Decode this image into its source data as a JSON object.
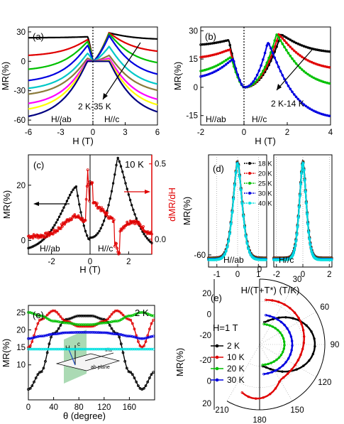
{
  "chart_data": [
    {
      "id": "a",
      "type": "line",
      "panel_label": "(a)",
      "xlabel": "H (T)",
      "ylabel": "MR(%)",
      "xlim": [
        -6,
        6
      ],
      "ylim": [
        -65,
        35
      ],
      "xticks": [
        "-6",
        "-3",
        "0",
        "3",
        "6"
      ],
      "yticks": [
        "-60",
        "-30",
        "0",
        "30"
      ],
      "annotations": [
        "2 K-35 K",
        "H//ab",
        "H//c"
      ],
      "series": [
        {
          "color": "#000000",
          "peak_left": 25,
          "peak_right": 29,
          "wing_left": 24,
          "wing_right": 22
        },
        {
          "color": "#e00000",
          "peak_left": 22,
          "peak_right": 29,
          "wing_left": 5,
          "wing_right": 8
        },
        {
          "color": "#00c000",
          "peak_left": 20,
          "peak_right": 28,
          "wing_left": -10,
          "wing_right": -5
        },
        {
          "color": "#0000e0",
          "peak_left": 16,
          "peak_right": 26,
          "wing_left": -22,
          "wing_right": -18
        },
        {
          "color": "#00c8c8",
          "peak_left": 8,
          "peak_right": 15,
          "wing_left": -30,
          "wing_right": -28
        },
        {
          "color": "#8a7a3a",
          "peak_left": 3,
          "peak_right": 6,
          "wing_left": -36,
          "wing_right": -34
        },
        {
          "color": "#ff00ff",
          "peak_left": 1,
          "peak_right": 3,
          "wing_left": -46,
          "wing_right": -44
        },
        {
          "color": "#ffff00",
          "peak_left": 0,
          "peak_right": 1,
          "wing_left": -52,
          "wing_right": -50
        },
        {
          "color": "#000080",
          "peak_left": 0,
          "peak_right": 0,
          "wing_left": -60,
          "wing_right": -58
        }
      ]
    },
    {
      "id": "b",
      "type": "line",
      "panel_label": "(b)",
      "xlabel": "H (T)",
      "ylabel": "MR(%)",
      "xlim": [
        -2,
        4
      ],
      "ylim": [
        -20,
        32
      ],
      "xticks": [
        "-2",
        "0",
        "2",
        "4"
      ],
      "yticks": [
        "-15",
        "0",
        "15",
        "30"
      ],
      "annotations": [
        "2 K-14 K",
        "H//ab",
        "H//c"
      ],
      "series": [
        {
          "color": "#000000",
          "peak_left_x": -0.7,
          "peak_left": 25,
          "peak_right_x": 1.7,
          "peak_right": 28,
          "end_left": 22,
          "end_right": 18
        },
        {
          "color": "#e00000",
          "peak_left_x": -0.65,
          "peak_left": 20,
          "peak_right_x": 1.6,
          "peak_right": 28,
          "end_left": 15,
          "end_right": 9
        },
        {
          "color": "#00c000",
          "peak_left_x": -0.6,
          "peak_left": 16,
          "peak_right_x": 1.5,
          "peak_right": 28,
          "end_left": 7,
          "end_right": 0
        },
        {
          "color": "#0000e0",
          "peak_left_x": -0.5,
          "peak_left": 15,
          "peak_right_x": 1.1,
          "peak_right": 24,
          "end_left": 4,
          "end_right": -17
        }
      ]
    },
    {
      "id": "c",
      "type": "line",
      "panel_label": "(c)",
      "xlabel": "H (T)",
      "ylabel": "MR(%)",
      "ylabel_right": "dMR/dH",
      "xlim": [
        -3.2,
        3.2
      ],
      "ylim": [
        -5,
        31
      ],
      "y2lim": [
        -0.1,
        0.56
      ],
      "xticks": [
        "-2",
        "0",
        "2"
      ],
      "yticks": [
        "0",
        "20"
      ],
      "y2ticks": [
        "0.0",
        "0.5"
      ],
      "annotations": [
        "10 K",
        "H//ab",
        "H//c"
      ]
    },
    {
      "id": "d",
      "type": "line",
      "panel_label": "(d)",
      "xlabel": "H/(T+T*) (T/K)",
      "ylabel": "MR(%)",
      "ylim": [
        -68,
        6
      ],
      "yticks": [
        "-60"
      ],
      "xticks_left": [
        "-1",
        "0",
        "1"
      ],
      "xticks_right": [
        "-2",
        "0",
        "2"
      ],
      "annotations": [
        "H//ab",
        "H//c"
      ],
      "legend": [
        {
          "label": "18 K",
          "color": "#000000"
        },
        {
          "label": "20 K",
          "color": "#e00000"
        },
        {
          "label": "25 K",
          "color": "#00c000"
        },
        {
          "label": "30 K",
          "color": "#0000e0"
        },
        {
          "label": "40 K",
          "color": "#00e0e0"
        }
      ]
    },
    {
      "id": "e",
      "type": "line",
      "panel_label": "(e)",
      "xlabel": "θ (degree)",
      "ylabel": "MR(%)",
      "xlim": [
        0,
        200
      ],
      "ylim": [
        0,
        27
      ],
      "xticks": [
        "0",
        "40",
        "80",
        "120",
        "160"
      ],
      "yticks": [
        "10",
        "15",
        "20",
        "25"
      ],
      "annotations": [
        "2 K"
      ],
      "inset_labels": [
        "H",
        "c",
        "I//a",
        "ab plane"
      ],
      "series": [
        {
          "color": "#000000",
          "values_at": [
            0,
            20,
            40,
            60,
            80,
            100,
            120,
            140,
            160,
            180,
            200
          ],
          "values": [
            3,
            8,
            19,
            23,
            24,
            24,
            23,
            19,
            8,
            3,
            8
          ]
        },
        {
          "color": "#e00000",
          "values_at": [
            0,
            20,
            40,
            60,
            80,
            100,
            120,
            140,
            160,
            180,
            200
          ],
          "values": [
            15,
            23,
            25.5,
            22.5,
            21,
            21,
            22.5,
            25.5,
            23,
            15,
            23
          ]
        },
        {
          "color": "#00c000",
          "values_at": [
            0,
            20,
            40,
            60,
            80,
            100,
            120,
            140,
            160,
            180,
            200
          ],
          "values": [
            25,
            24,
            22.5,
            22,
            21.5,
            21.5,
            22,
            22.5,
            24,
            25,
            24
          ]
        },
        {
          "color": "#0000e0",
          "values_at": [
            0,
            20,
            40,
            60,
            80,
            100,
            120,
            140,
            160,
            180,
            200
          ],
          "values": [
            17.5,
            18.2,
            18.8,
            19.2,
            19.3,
            19.3,
            19.2,
            18.8,
            18.2,
            17.5,
            18.2
          ]
        },
        {
          "color": "#00e0e0",
          "values_at": [
            0,
            200
          ],
          "values": [
            14.5,
            14.5
          ]
        }
      ]
    },
    {
      "id": "e_polar",
      "type": "line",
      "panel_label": "(e)",
      "ylabel": "MR(%)",
      "title": "H=1 T",
      "angle_labels": [
        "0",
        "30",
        "60",
        "90",
        "120",
        "150",
        "180",
        "210"
      ],
      "radial_labels_top": [
        "20",
        "0",
        "-20"
      ],
      "radial_labels_bottom": [
        "-20",
        "0",
        "20"
      ],
      "legend": [
        {
          "label": "2 K",
          "color": "#000000"
        },
        {
          "label": "10 K",
          "color": "#e00000"
        },
        {
          "label": "20 K",
          "color": "#00c000"
        },
        {
          "label": "30 K",
          "color": "#0000e0"
        }
      ]
    }
  ]
}
